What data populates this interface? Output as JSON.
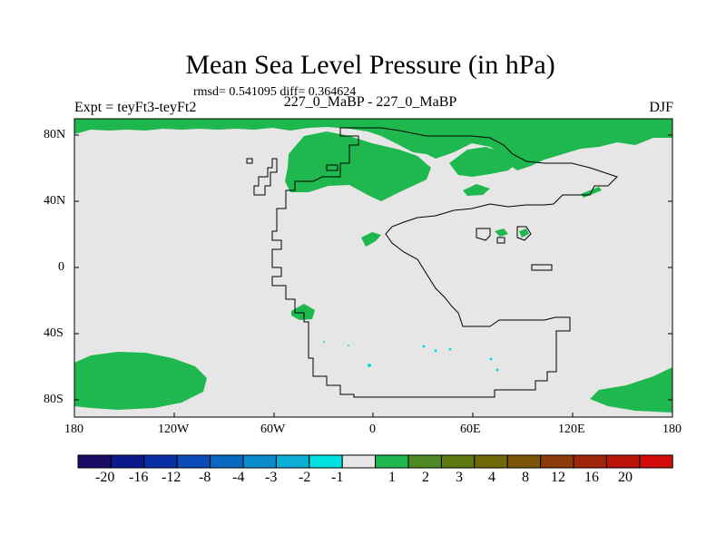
{
  "title": "Mean Sea Level Pressure (in hPa)",
  "stats": "rmsd= 0.541095 diff= 0.364624",
  "left_label": "Expt = teyFt3-teyFt2",
  "center_label": "227_0_MaBP - 227_0_MaBP",
  "right_label": "DJF",
  "lat_labels": [
    "80N",
    "40N",
    "0",
    "40S",
    "80S"
  ],
  "lat_values": [
    80,
    40,
    0,
    -40,
    -80
  ],
  "lon_labels": [
    "180",
    "120W",
    "60W",
    "0",
    "60E",
    "120E",
    "180"
  ],
  "lon_values": [
    -180,
    -120,
    -60,
    0,
    60,
    120,
    180
  ],
  "colorbar": {
    "colors": [
      "#1a0a66",
      "#0a1a8c",
      "#0a2ea6",
      "#0b4bb8",
      "#0a68c2",
      "#0b8ccc",
      "#0aaed6",
      "#00e0e0",
      "#e6e6e6",
      "#1fb84e",
      "#4d8a26",
      "#5c7a10",
      "#6e6a0a",
      "#7d560a",
      "#8c3c0a",
      "#a0240a",
      "#b8140a",
      "#d10a0a"
    ],
    "labels": [
      "-20",
      "-16",
      "-12",
      "-8",
      "-4",
      "-3",
      "-2",
      "-1",
      "1",
      "2",
      "3",
      "4",
      "8",
      "12",
      "16",
      "20"
    ]
  },
  "colors": {
    "background": "#e6e6e6",
    "positive": "#1fb84e",
    "negative_small": "#00e0e0"
  }
}
